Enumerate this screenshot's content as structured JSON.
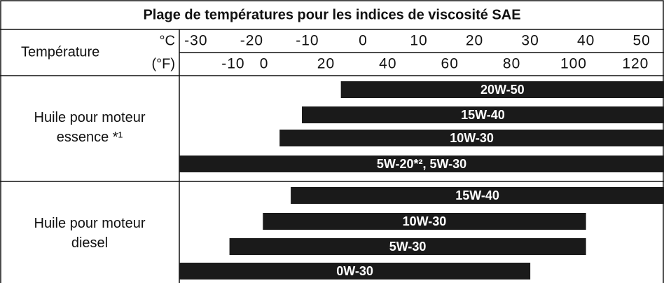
{
  "chart_data": {
    "type": "range-bar",
    "title": "Plage de températures pour les indices de viscosité SAE",
    "axis_label": "Température",
    "x_unit": "°C",
    "x2_unit": "(°F)",
    "xlim": [
      -33,
      54
    ],
    "xticks": [
      -30,
      -20,
      -10,
      0,
      10,
      20,
      30,
      40,
      50
    ],
    "x2lim": [
      -27.4,
      129.2
    ],
    "x2ticks": [
      -10,
      0,
      20,
      40,
      60,
      80,
      100,
      120
    ],
    "color": "#1a1a1a",
    "groups": [
      {
        "label": "Huile pour moteur essence *¹",
        "bars": [
          {
            "name": "20W-50",
            "start": -4,
            "end": 54
          },
          {
            "name": "15W-40",
            "start": -11,
            "end": 54
          },
          {
            "name": "10W-30",
            "start": -15,
            "end": 54
          },
          {
            "name": "5W-20*², 5W-30",
            "start": -33,
            "end": 54
          }
        ]
      },
      {
        "label": "Huile pour moteur diesel",
        "bars": [
          {
            "name": "15W-40",
            "start": -13,
            "end": 54
          },
          {
            "name": "10W-30",
            "start": -18,
            "end": 40
          },
          {
            "name": "5W-30",
            "start": -24,
            "end": 40
          },
          {
            "name": "0W-30",
            "start": -33,
            "end": 30
          }
        ]
      }
    ]
  }
}
